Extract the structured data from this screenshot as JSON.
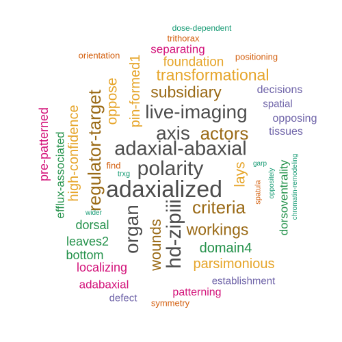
{
  "colors": {
    "dark_gray": "#4d4d4d",
    "orange_brown": "#9a6a16",
    "gold": "#e6a52a",
    "magenta": "#d3137a",
    "purple": "#6e63a8",
    "green": "#23914a",
    "orange": "#d35f0e",
    "teal": "#159a73"
  },
  "words": [
    {
      "text": "adaxialized",
      "color": "dark_gray",
      "orientation": "horizontal"
    },
    {
      "text": "adaxial-abaxial",
      "color": "dark_gray",
      "orientation": "horizontal"
    },
    {
      "text": "polarity",
      "color": "dark_gray",
      "orientation": "horizontal"
    },
    {
      "text": "axis",
      "color": "dark_gray",
      "orientation": "horizontal"
    },
    {
      "text": "live-imaging",
      "color": "dark_gray",
      "orientation": "horizontal"
    },
    {
      "text": "hd-zipiii",
      "color": "dark_gray",
      "orientation": "vertical"
    },
    {
      "text": "organ",
      "color": "dark_gray",
      "orientation": "vertical"
    },
    {
      "text": "regulator-target",
      "color": "orange_brown",
      "orientation": "vertical"
    },
    {
      "text": "actors",
      "color": "orange_brown",
      "orientation": "horizontal"
    },
    {
      "text": "criteria",
      "color": "orange_brown",
      "orientation": "horizontal"
    },
    {
      "text": "workings",
      "color": "orange_brown",
      "orientation": "horizontal"
    },
    {
      "text": "subsidiary",
      "color": "orange_brown",
      "orientation": "horizontal"
    },
    {
      "text": "wounds",
      "color": "orange_brown",
      "orientation": "vertical"
    },
    {
      "text": "domain4",
      "color": "green",
      "orientation": "horizontal"
    },
    {
      "text": "transformational",
      "color": "gold",
      "orientation": "horizontal"
    },
    {
      "text": "high-confidence",
      "color": "gold",
      "orientation": "vertical"
    },
    {
      "text": "pin-formed1",
      "color": "gold",
      "orientation": "vertical"
    },
    {
      "text": "oppose",
      "color": "gold",
      "orientation": "vertical"
    },
    {
      "text": "parsimonious",
      "color": "gold",
      "orientation": "horizontal"
    },
    {
      "text": "lays",
      "color": "gold",
      "orientation": "vertical"
    },
    {
      "text": "foundation",
      "color": "gold",
      "orientation": "horizontal"
    },
    {
      "text": "separating",
      "color": "magenta",
      "orientation": "horizontal"
    },
    {
      "text": "pre-patterned",
      "color": "magenta",
      "orientation": "vertical"
    },
    {
      "text": "localizing",
      "color": "magenta",
      "orientation": "horizontal"
    },
    {
      "text": "adabaxial",
      "color": "magenta",
      "orientation": "horizontal"
    },
    {
      "text": "patterning",
      "color": "magenta",
      "orientation": "horizontal"
    },
    {
      "text": "efflux-associated",
      "color": "green",
      "orientation": "vertical"
    },
    {
      "text": "dorsal",
      "color": "green",
      "orientation": "horizontal"
    },
    {
      "text": "leaves2",
      "color": "green",
      "orientation": "horizontal"
    },
    {
      "text": "bottom",
      "color": "green",
      "orientation": "horizontal"
    },
    {
      "text": "dorsoventrality",
      "color": "green",
      "orientation": "vertical"
    },
    {
      "text": "decisions",
      "color": "purple",
      "orientation": "horizontal"
    },
    {
      "text": "spatial",
      "color": "purple",
      "orientation": "horizontal"
    },
    {
      "text": "opposing",
      "color": "purple",
      "orientation": "horizontal"
    },
    {
      "text": "tissues",
      "color": "purple",
      "orientation": "horizontal"
    },
    {
      "text": "establishment",
      "color": "purple",
      "orientation": "horizontal"
    },
    {
      "text": "defect",
      "color": "purple",
      "orientation": "horizontal"
    },
    {
      "text": "orientation",
      "color": "orange",
      "orientation": "horizontal"
    },
    {
      "text": "positioning",
      "color": "orange",
      "orientation": "horizontal"
    },
    {
      "text": "trithorax",
      "color": "orange",
      "orientation": "horizontal"
    },
    {
      "text": "find",
      "color": "orange",
      "orientation": "horizontal"
    },
    {
      "text": "symmetry",
      "color": "orange",
      "orientation": "horizontal"
    },
    {
      "text": "spatula",
      "color": "orange",
      "orientation": "vertical"
    },
    {
      "text": "dose-dependent",
      "color": "teal",
      "orientation": "horizontal"
    },
    {
      "text": "trxg",
      "color": "teal",
      "orientation": "horizontal"
    },
    {
      "text": "wider",
      "color": "teal",
      "orientation": "horizontal"
    },
    {
      "text": "garp",
      "color": "teal",
      "orientation": "horizontal"
    },
    {
      "text": "oppositely",
      "color": "teal",
      "orientation": "vertical"
    },
    {
      "text": "chromatin-remodeling",
      "color": "teal",
      "orientation": "vertical"
    }
  ]
}
